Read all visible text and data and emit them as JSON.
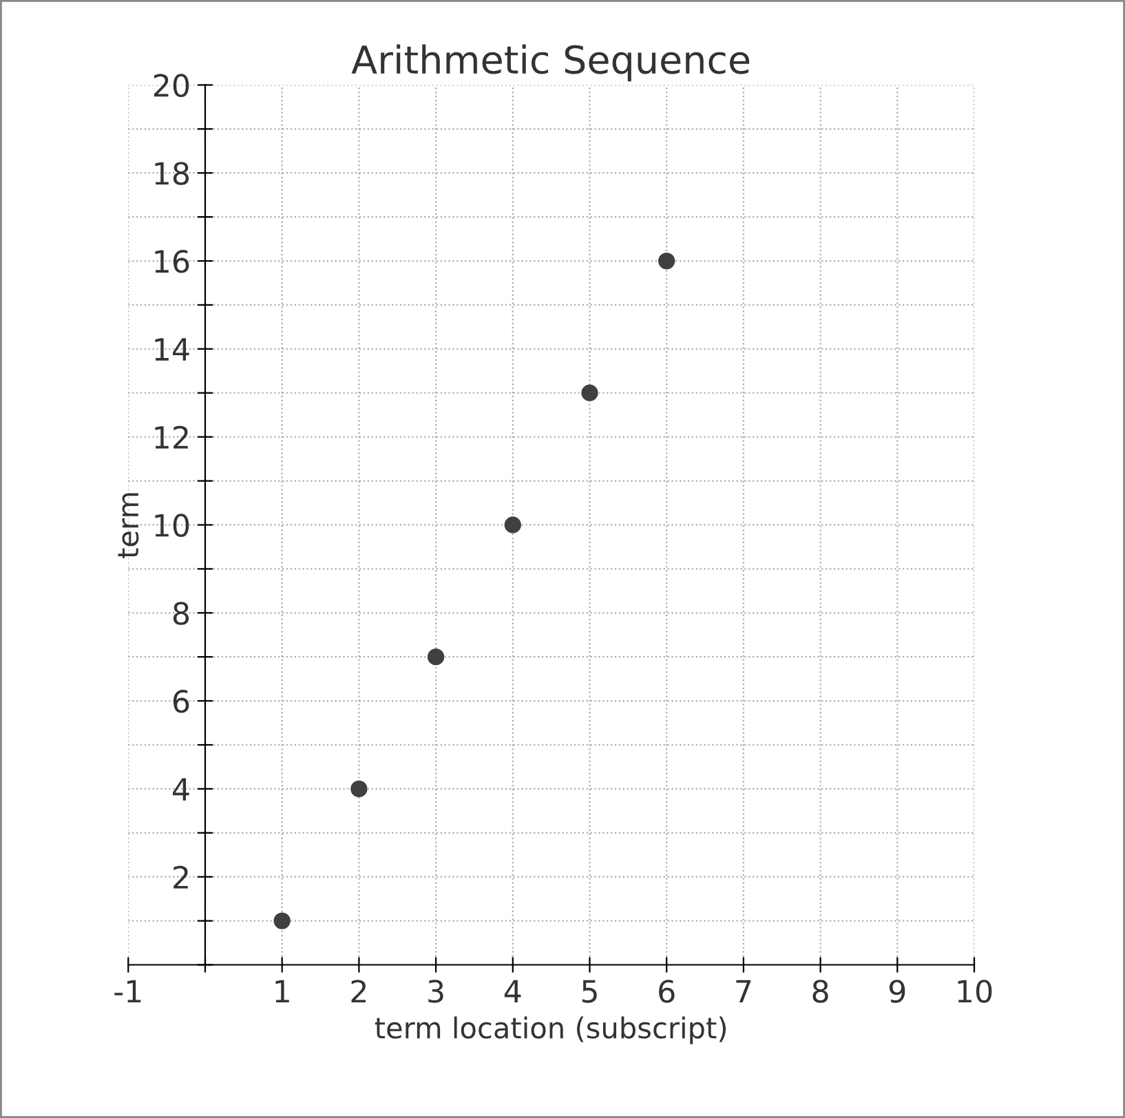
{
  "chart_data": {
    "type": "scatter",
    "title": "Arithmetic Sequence",
    "xlabel": "term location (subscript)",
    "ylabel": "term",
    "x": [
      1,
      2,
      3,
      4,
      5,
      6
    ],
    "values": [
      1,
      4,
      7,
      10,
      13,
      16
    ],
    "color": "#404040",
    "marker": "circle",
    "xlim": [
      -1,
      10
    ],
    "ylim": [
      0,
      20
    ],
    "xticks": [
      -1,
      {
        "value": 0,
        "label": null
      },
      1,
      2,
      3,
      4,
      5,
      6,
      7,
      8,
      9,
      10
    ],
    "yticks": [
      {
        "value": 0,
        "label": null
      },
      {
        "value": 1,
        "label": null
      },
      2,
      {
        "value": 3,
        "label": null
      },
      4,
      {
        "value": 5,
        "label": null
      },
      6,
      {
        "value": 7,
        "label": null
      },
      8,
      {
        "value": 9,
        "label": null
      },
      10,
      {
        "value": 11,
        "label": null
      },
      12,
      {
        "value": 13,
        "label": null
      },
      14,
      {
        "value": 15,
        "label": null
      },
      16,
      {
        "value": 17,
        "label": null
      },
      18,
      {
        "value": 19,
        "label": null
      },
      20
    ],
    "grid": true
  }
}
